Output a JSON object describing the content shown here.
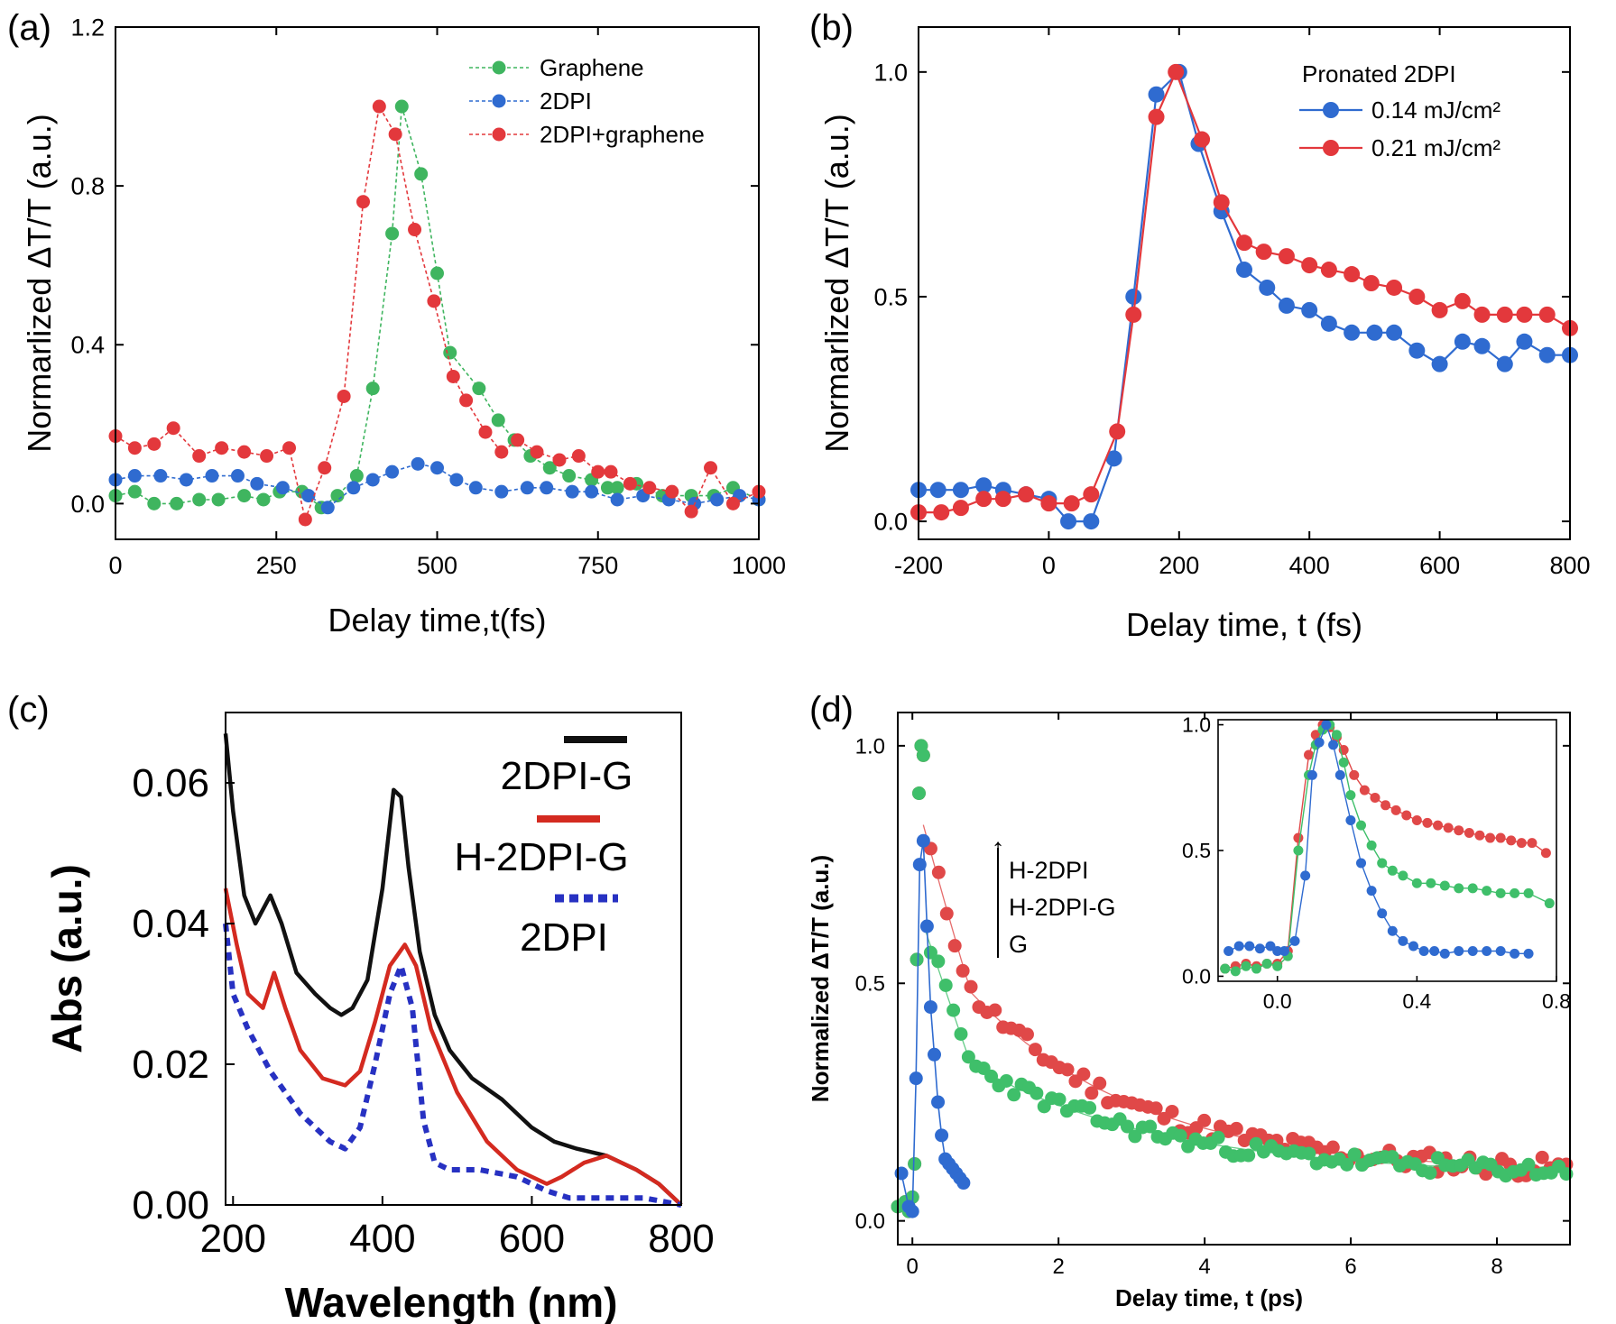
{
  "chart_data": [
    {
      "panel": "(a)",
      "type": "scatter",
      "xlabel": "Delay time,t(fs)",
      "ylabel": "Normarlized ΔT/T (a.u.)",
      "xlim": [
        0,
        1000
      ],
      "ylim": [
        -0.09,
        1.2
      ],
      "xticks": [
        "0",
        "250",
        "500",
        "750",
        "1000"
      ],
      "yticks": [
        "0.0",
        "0.4",
        "0.8",
        "1.2"
      ],
      "legend_position": "top-right",
      "series": [
        {
          "name": "Graphene",
          "color": "#3fb55f",
          "x": [
            0,
            30,
            60,
            95,
            130,
            160,
            200,
            230,
            255,
            290,
            320,
            345,
            375,
            400,
            430,
            445,
            475,
            500,
            520,
            565,
            595,
            620,
            645,
            675,
            705,
            740,
            765,
            780,
            810,
            850,
            895,
            930,
            960,
            1000
          ],
          "y": [
            0.02,
            0.03,
            0.0,
            0.0,
            0.01,
            0.01,
            0.02,
            0.01,
            0.03,
            0.03,
            -0.01,
            0.02,
            0.07,
            0.29,
            0.68,
            1.0,
            0.83,
            0.58,
            0.38,
            0.29,
            0.21,
            0.16,
            0.12,
            0.09,
            0.07,
            0.06,
            0.04,
            0.04,
            0.05,
            0.02,
            0.02,
            0.02,
            0.04,
            0.01
          ]
        },
        {
          "name": "2DPI",
          "color": "#2f6bd0",
          "x": [
            0,
            30,
            70,
            110,
            150,
            190,
            220,
            260,
            300,
            330,
            370,
            400,
            430,
            470,
            500,
            530,
            560,
            600,
            640,
            670,
            710,
            740,
            780,
            820,
            860,
            900,
            935,
            970,
            1000
          ],
          "y": [
            0.06,
            0.07,
            0.07,
            0.06,
            0.07,
            0.07,
            0.05,
            0.04,
            0.02,
            -0.01,
            0.04,
            0.06,
            0.08,
            0.1,
            0.09,
            0.06,
            0.04,
            0.03,
            0.04,
            0.04,
            0.03,
            0.03,
            0.01,
            0.02,
            0.01,
            0.0,
            0.01,
            0.02,
            0.01
          ]
        },
        {
          "name": "2DPI+graphene",
          "color": "#e3383c",
          "x": [
            0,
            30,
            60,
            90,
            130,
            165,
            200,
            235,
            270,
            295,
            325,
            355,
            385,
            410,
            435,
            465,
            495,
            525,
            545,
            575,
            600,
            625,
            655,
            690,
            720,
            750,
            770,
            800,
            830,
            865,
            895,
            925,
            960,
            1000
          ],
          "y": [
            0.17,
            0.14,
            0.15,
            0.19,
            0.12,
            0.14,
            0.13,
            0.12,
            0.14,
            -0.04,
            0.09,
            0.27,
            0.76,
            1.0,
            0.93,
            0.69,
            0.51,
            0.32,
            0.26,
            0.18,
            0.13,
            0.16,
            0.13,
            0.11,
            0.12,
            0.08,
            0.08,
            0.05,
            0.04,
            0.03,
            -0.02,
            0.09,
            0.0,
            0.03
          ]
        }
      ]
    },
    {
      "panel": "(b)",
      "type": "line",
      "xlabel": "Delay time, t (fs)",
      "ylabel": "Normarlized ΔT/T (a.u.)",
      "xlim": [
        -200,
        800
      ],
      "ylim": [
        -0.04,
        1.1
      ],
      "xticks": [
        "-200",
        "0",
        "200",
        "400",
        "600",
        "800"
      ],
      "yticks": [
        "0.0",
        "0.5",
        "1.0"
      ],
      "legend_title": "Pronated 2DPI",
      "legend_position": "top-right",
      "series": [
        {
          "name": "0.14 mJ/cm²",
          "color": "#2f6bd0",
          "x": [
            -200,
            -170,
            -135,
            -100,
            -70,
            -35,
            0,
            30,
            65,
            100,
            130,
            165,
            200,
            230,
            265,
            300,
            335,
            365,
            400,
            430,
            465,
            500,
            530,
            565,
            600,
            635,
            665,
            700,
            730,
            765,
            800
          ],
          "y": [
            0.07,
            0.07,
            0.07,
            0.08,
            0.07,
            0.06,
            0.05,
            0.0,
            0.0,
            0.14,
            0.5,
            0.95,
            1.0,
            0.84,
            0.69,
            0.56,
            0.52,
            0.48,
            0.47,
            0.44,
            0.42,
            0.42,
            0.42,
            0.38,
            0.35,
            0.4,
            0.39,
            0.35,
            0.4,
            0.37,
            0.37
          ]
        },
        {
          "name": "0.21 mJ/cm²",
          "color": "#e3383c",
          "x": [
            -200,
            -165,
            -135,
            -100,
            -70,
            -35,
            0,
            35,
            65,
            105,
            130,
            165,
            195,
            235,
            265,
            300,
            330,
            365,
            400,
            430,
            465,
            495,
            530,
            565,
            600,
            635,
            665,
            700,
            730,
            765,
            800
          ],
          "y": [
            0.02,
            0.02,
            0.03,
            0.05,
            0.05,
            0.06,
            0.04,
            0.04,
            0.06,
            0.2,
            0.46,
            0.9,
            1.0,
            0.85,
            0.71,
            0.62,
            0.6,
            0.59,
            0.57,
            0.56,
            0.55,
            0.53,
            0.52,
            0.5,
            0.47,
            0.49,
            0.46,
            0.46,
            0.46,
            0.46,
            0.43
          ]
        }
      ]
    },
    {
      "panel": "(c)",
      "type": "line",
      "xlabel": "Wavelength (nm)",
      "ylabel": "Abs (a.u.)",
      "xlim": [
        190,
        800
      ],
      "ylim": [
        0.0,
        0.07
      ],
      "xticks": [
        "200",
        "400",
        "600",
        "800"
      ],
      "yticks": [
        "0.00",
        "0.02",
        "0.04",
        "0.06"
      ],
      "legend_position": "top-right",
      "series": [
        {
          "name": "2DPI-G",
          "color": "#111111",
          "dash": "solid",
          "x": [
            190,
            200,
            215,
            230,
            250,
            265,
            285,
            310,
            330,
            345,
            360,
            380,
            400,
            415,
            425,
            435,
            450,
            470,
            490,
            520,
            560,
            600,
            630,
            660,
            700,
            740,
            770,
            800
          ],
          "y": [
            0.067,
            0.056,
            0.044,
            0.04,
            0.044,
            0.04,
            0.033,
            0.03,
            0.028,
            0.027,
            0.028,
            0.032,
            0.045,
            0.059,
            0.058,
            0.048,
            0.036,
            0.027,
            0.022,
            0.018,
            0.015,
            0.011,
            0.009,
            0.008,
            0.007,
            0.005,
            0.003,
            0.0
          ]
        },
        {
          "name": "H-2DPI-G",
          "color": "#d42a20",
          "dash": "solid",
          "x": [
            190,
            205,
            220,
            240,
            255,
            270,
            290,
            320,
            350,
            370,
            390,
            410,
            430,
            445,
            465,
            500,
            540,
            580,
            620,
            640,
            670,
            700,
            740,
            770,
            800
          ],
          "y": [
            0.045,
            0.037,
            0.03,
            0.028,
            0.033,
            0.028,
            0.022,
            0.018,
            0.017,
            0.019,
            0.026,
            0.034,
            0.037,
            0.034,
            0.025,
            0.016,
            0.009,
            0.005,
            0.003,
            0.004,
            0.006,
            0.007,
            0.005,
            0.003,
            0.0
          ]
        },
        {
          "name": "2DPI",
          "color": "#2731c2",
          "dash": "dotted",
          "x": [
            190,
            200,
            220,
            250,
            290,
            330,
            350,
            370,
            390,
            410,
            425,
            440,
            455,
            470,
            490,
            530,
            580,
            620,
            650,
            700,
            750,
            800
          ],
          "y": [
            0.04,
            0.03,
            0.025,
            0.019,
            0.013,
            0.009,
            0.008,
            0.011,
            0.02,
            0.03,
            0.034,
            0.028,
            0.012,
            0.006,
            0.005,
            0.005,
            0.004,
            0.002,
            0.001,
            0.001,
            0.001,
            0.0
          ]
        }
      ]
    },
    {
      "panel": "(d)",
      "type": "scatter",
      "xlabel": "Delay time, t (ps)",
      "ylabel": "Normalized ΔT/T (a.u.)",
      "xlim": [
        -0.2,
        9.0
      ],
      "ylim": [
        -0.05,
        1.07
      ],
      "xticks": [
        "0",
        "2",
        "4",
        "6",
        "8"
      ],
      "yticks": [
        "0.0",
        "0.5",
        "1.0"
      ],
      "annotation_arrow": "↑",
      "legend_position": "middle",
      "series": [
        {
          "name": "H-2DPI",
          "color": "#e04848",
          "fit": {
            "a": 0.54,
            "tau": 2.3,
            "b": 0.1
          },
          "noise_seed": 11,
          "jitter": 0.022,
          "n": 80,
          "x_start": 0.25,
          "x_end": 8.95
        },
        {
          "name": "H-2DPI-G",
          "color": "#3fbf6a",
          "fit": {
            "a": 0.32,
            "tau": 2.6,
            "b": 0.095
          },
          "noise_seed": 23,
          "jitter": 0.018,
          "n": 85,
          "x_start": 0.25,
          "x_end": 8.95
        },
        {
          "name": "G",
          "color": "#2f6bd0",
          "x": [
            -0.15,
            -0.05,
            0.0,
            0.05,
            0.1,
            0.15,
            0.2,
            0.25,
            0.3,
            0.35,
            0.4,
            0.45,
            0.5,
            0.55,
            0.6,
            0.65,
            0.7
          ],
          "y": [
            0.1,
            0.03,
            0.02,
            0.3,
            0.75,
            0.8,
            0.62,
            0.45,
            0.35,
            0.25,
            0.18,
            0.13,
            0.12,
            0.11,
            0.1,
            0.09,
            0.08
          ]
        }
      ],
      "rise": [
        [
          -0.2,
          0.03
        ],
        [
          -0.1,
          0.04
        ],
        [
          -0.05,
          0.02
        ],
        [
          0.0,
          0.05
        ],
        [
          0.03,
          0.12
        ],
        [
          0.06,
          0.55
        ],
        [
          0.09,
          0.9
        ],
        [
          0.12,
          1.0
        ],
        [
          0.15,
          0.98
        ]
      ],
      "inset": {
        "xlim": [
          -0.17,
          0.8
        ],
        "ylim": [
          -0.02,
          1.02
        ],
        "xticks": [
          "0.0",
          "0.4",
          "0.8"
        ],
        "yticks": [
          "0.0",
          "0.5",
          "1.0"
        ],
        "series": [
          {
            "name": "H-2DPI",
            "color": "#e04848",
            "x": [
              -0.15,
              -0.12,
              -0.09,
              -0.06,
              -0.03,
              0.0,
              0.03,
              0.06,
              0.09,
              0.11,
              0.13,
              0.15,
              0.17,
              0.19,
              0.22,
              0.25,
              0.28,
              0.31,
              0.34,
              0.37,
              0.4,
              0.43,
              0.46,
              0.49,
              0.52,
              0.55,
              0.58,
              0.61,
              0.64,
              0.67,
              0.7,
              0.73,
              0.77
            ],
            "y": [
              0.03,
              0.04,
              0.05,
              0.04,
              0.05,
              0.05,
              0.1,
              0.55,
              0.88,
              0.96,
              1.0,
              0.99,
              0.95,
              0.9,
              0.8,
              0.74,
              0.71,
              0.68,
              0.66,
              0.64,
              0.62,
              0.61,
              0.6,
              0.59,
              0.58,
              0.57,
              0.56,
              0.55,
              0.55,
              0.54,
              0.53,
              0.53,
              0.49
            ]
          },
          {
            "name": "H-2DPI-G",
            "color": "#3fbf6a",
            "x": [
              -0.15,
              -0.12,
              -0.09,
              -0.06,
              -0.03,
              0.0,
              0.03,
              0.06,
              0.09,
              0.11,
              0.13,
              0.15,
              0.17,
              0.19,
              0.21,
              0.24,
              0.27,
              0.3,
              0.33,
              0.36,
              0.4,
              0.44,
              0.48,
              0.52,
              0.56,
              0.6,
              0.64,
              0.68,
              0.72,
              0.78
            ],
            "y": [
              0.03,
              0.02,
              0.04,
              0.03,
              0.05,
              0.04,
              0.08,
              0.5,
              0.8,
              0.92,
              0.98,
              1.0,
              0.96,
              0.85,
              0.72,
              0.6,
              0.52,
              0.45,
              0.42,
              0.4,
              0.37,
              0.37,
              0.36,
              0.35,
              0.35,
              0.34,
              0.33,
              0.33,
              0.33,
              0.29
            ]
          },
          {
            "name": "G",
            "color": "#2f6bd0",
            "x": [
              -0.14,
              -0.11,
              -0.08,
              -0.05,
              -0.02,
              0.0,
              0.02,
              0.05,
              0.08,
              0.1,
              0.12,
              0.14,
              0.16,
              0.18,
              0.21,
              0.24,
              0.27,
              0.3,
              0.33,
              0.36,
              0.39,
              0.42,
              0.45,
              0.48,
              0.52,
              0.56,
              0.6,
              0.64,
              0.68,
              0.72
            ],
            "y": [
              0.1,
              0.12,
              0.12,
              0.11,
              0.12,
              0.1,
              0.1,
              0.14,
              0.4,
              0.8,
              0.93,
              1.0,
              0.92,
              0.8,
              0.62,
              0.45,
              0.34,
              0.25,
              0.18,
              0.14,
              0.12,
              0.1,
              0.1,
              0.09,
              0.1,
              0.1,
              0.1,
              0.1,
              0.09,
              0.09
            ]
          }
        ]
      }
    }
  ]
}
